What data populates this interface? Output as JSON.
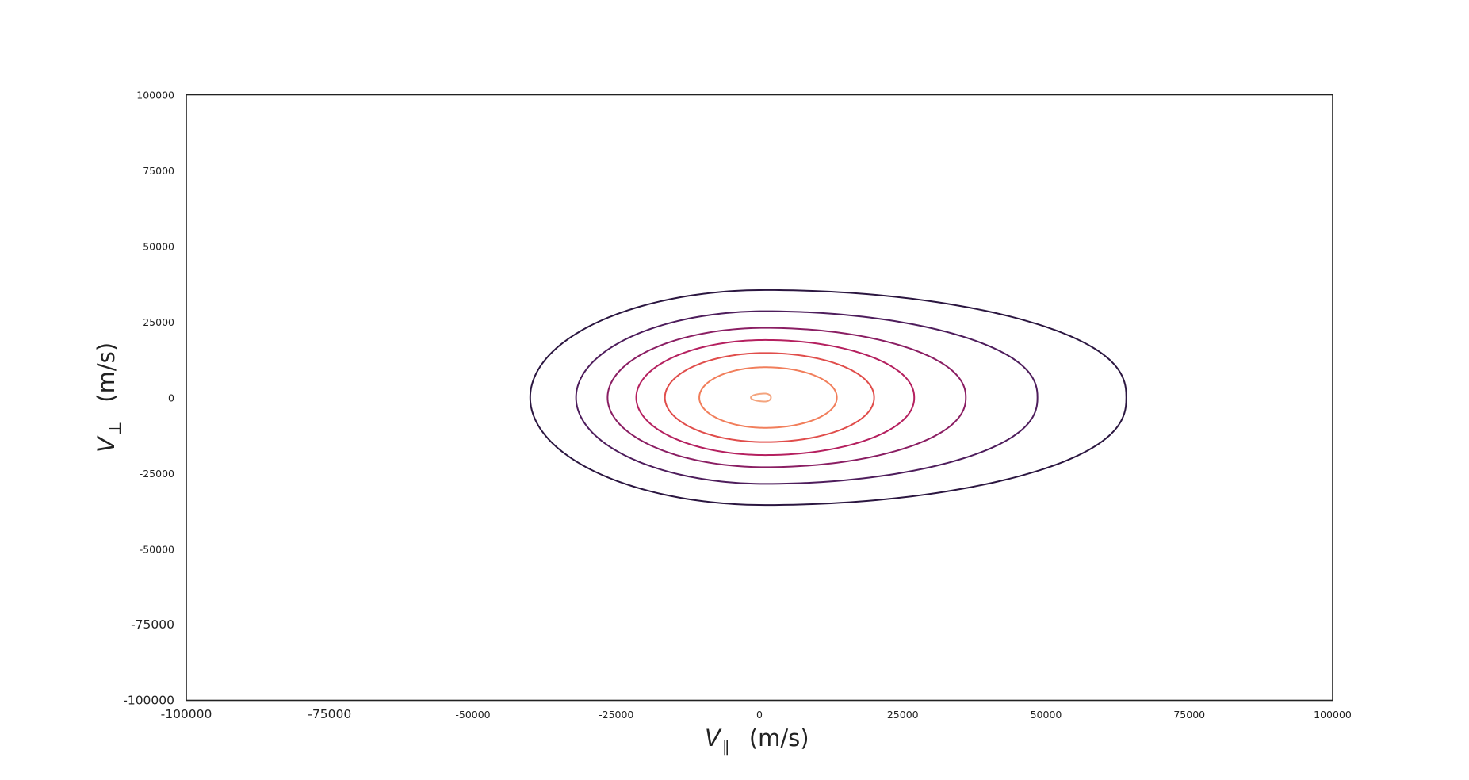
{
  "chart_data": {
    "type": "contour",
    "title": "",
    "xlabel": {
      "symbol": "V",
      "subscript": "∥",
      "unit": "(m/s)"
    },
    "ylabel": {
      "symbol": "V",
      "subscript": "⊥",
      "unit": "(m/s)"
    },
    "xlim": [
      -100000,
      100000
    ],
    "ylim": [
      -100000,
      100000
    ],
    "xticks": [
      -100000,
      -75000,
      -50000,
      -25000,
      0,
      25000,
      50000,
      75000,
      100000
    ],
    "xtick_labels": [
      "-100000",
      "-75000",
      "-50000",
      "-25000",
      "0",
      "25000",
      "50000",
      "75000",
      "100000"
    ],
    "yticks": [
      100000,
      75000,
      50000,
      25000,
      0,
      -25000,
      -50000,
      -75000,
      -100000
    ],
    "ytick_labels": [
      "100000",
      "75000",
      "50000",
      "25000",
      "0",
      "-25000",
      "-50000",
      "-75000",
      "-100000"
    ],
    "grid": false,
    "legend": false,
    "center": [
      1000,
      0
    ],
    "levels": [
      {
        "color": "#2b1640",
        "x_min": -40000,
        "x_max": 64000,
        "y_max": 35500
      },
      {
        "color": "#4e1d5c",
        "x_min": -32000,
        "x_max": 48500,
        "y_max": 28500
      },
      {
        "color": "#8a1e63",
        "x_min": -26500,
        "x_max": 36000,
        "y_max": 23000
      },
      {
        "color": "#b5205f",
        "x_min": -21500,
        "x_max": 27000,
        "y_max": 19000
      },
      {
        "color": "#e04d4b",
        "x_min": -16500,
        "x_max": 20000,
        "y_max": 14700
      },
      {
        "color": "#f17e5b",
        "x_min": -10500,
        "x_max": 13500,
        "y_max": 10000
      },
      {
        "color": "#f4a47e",
        "x_min": -1500,
        "x_max": 2000,
        "y_max": 1300
      }
    ]
  }
}
